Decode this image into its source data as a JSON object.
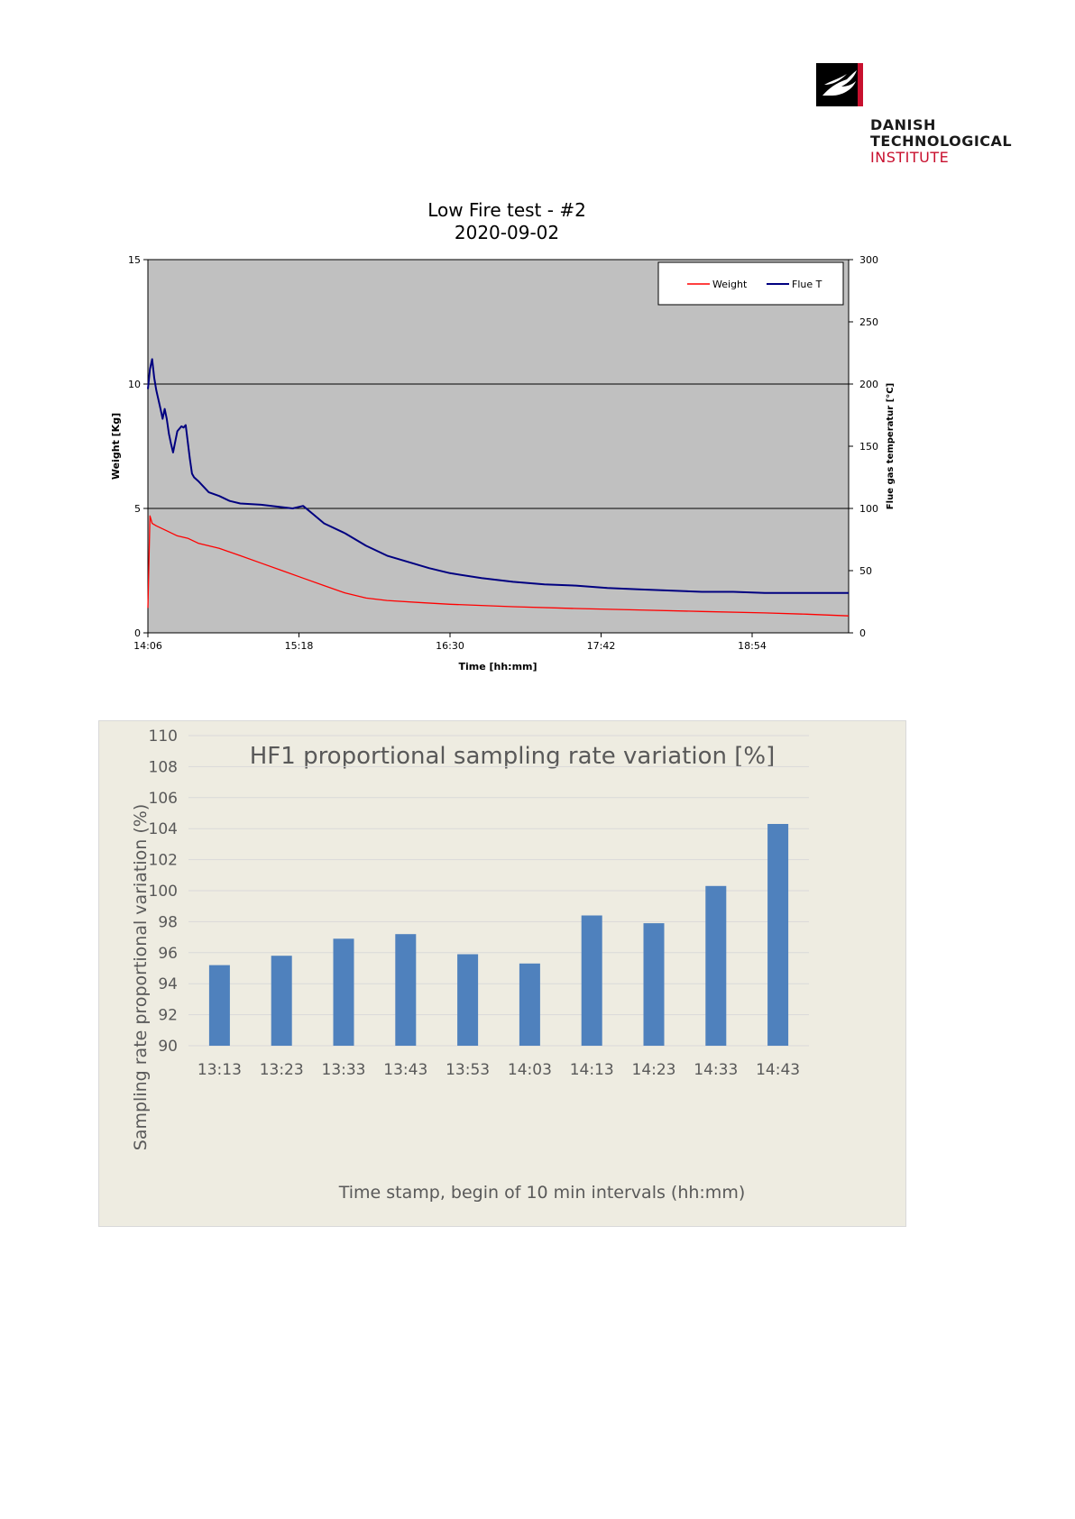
{
  "logo": {
    "lines": [
      "DANISH",
      "TECHNOLOGICAL",
      "INSTITUTE"
    ],
    "colors": {
      "mark_bg": "#000000",
      "mark_accent": "#c8102e",
      "text_dark": "#1a1a1a",
      "text_red": "#c8102e"
    }
  },
  "chart_data": [
    {
      "type": "line",
      "title": "Low Fire test - #2",
      "subtitle": "2020-09-02",
      "xlabel": "Time [hh:mm]",
      "ylabel": "Weight [Kg]",
      "y2label": "Flue gas temperatur [°C]",
      "x_ticks": [
        "14:06",
        "15:18",
        "16:30",
        "17:42",
        "18:54"
      ],
      "xlim": [
        "14:06",
        "19:40"
      ],
      "ylim": [
        0,
        15
      ],
      "y_ticks": [
        "0",
        "5",
        "10",
        "15"
      ],
      "y2lim": [
        0,
        300
      ],
      "y2_ticks": [
        "0",
        "50",
        "100",
        "150",
        "200",
        "250",
        "300"
      ],
      "grid": "horizontal at major left-axis ticks",
      "plot_background": "#c0c0c0",
      "legend_position": "top-right",
      "series": [
        {
          "name": "Weight",
          "axis": "left",
          "color": "#ff0000",
          "x": [
            "14:06",
            "14:07",
            "14:08",
            "14:10",
            "14:15",
            "14:20",
            "14:25",
            "14:30",
            "14:40",
            "14:50",
            "15:00",
            "15:10",
            "15:20",
            "15:30",
            "15:40",
            "15:50",
            "16:00",
            "16:15",
            "16:30",
            "17:00",
            "17:30",
            "18:00",
            "18:30",
            "19:00",
            "19:20",
            "19:40"
          ],
          "y": [
            1.0,
            4.7,
            4.4,
            4.3,
            4.1,
            3.9,
            3.8,
            3.6,
            3.4,
            3.1,
            2.8,
            2.5,
            2.2,
            1.9,
            1.6,
            1.4,
            1.3,
            1.22,
            1.15,
            1.05,
            0.98,
            0.92,
            0.86,
            0.8,
            0.75,
            0.68
          ]
        },
        {
          "name": "Flue T",
          "axis": "right",
          "color": "#000080",
          "x": [
            "14:06",
            "14:07",
            "14:08",
            "14:09",
            "14:10",
            "14:12",
            "14:13",
            "14:14",
            "14:15",
            "14:16",
            "14:17",
            "14:18",
            "14:20",
            "14:22",
            "14:23",
            "14:24",
            "14:26",
            "14:27",
            "14:28",
            "14:30",
            "14:35",
            "14:40",
            "14:45",
            "14:50",
            "15:00",
            "15:10",
            "15:15",
            "15:20",
            "15:25",
            "15:30",
            "15:40",
            "15:50",
            "16:00",
            "16:10",
            "16:20",
            "16:30",
            "16:45",
            "17:00",
            "17:15",
            "17:30",
            "17:45",
            "18:00",
            "18:15",
            "18:30",
            "18:45",
            "19:00",
            "19:20",
            "19:40"
          ],
          "y": [
            196,
            212,
            220,
            205,
            195,
            180,
            172,
            180,
            172,
            160,
            152,
            145,
            162,
            166,
            165,
            167,
            140,
            128,
            125,
            122,
            113,
            110,
            106,
            104,
            103,
            101,
            100,
            102,
            95,
            88,
            80,
            70,
            62,
            57,
            52,
            48,
            44,
            41,
            39,
            38,
            36,
            35,
            34,
            33,
            33,
            32,
            32,
            32
          ]
        }
      ]
    },
    {
      "type": "bar",
      "title": "HF1 proportional sampling rate variation [%]",
      "xlabel": "Time stamp, begin of 10 min intervals (hh:mm)",
      "ylabel": "Sampling rate proportional variation (%)",
      "categories": [
        "13:13",
        "13:23",
        "13:33",
        "13:43",
        "13:53",
        "14:03",
        "14:13",
        "14:23",
        "14:33",
        "14:43"
      ],
      "values": [
        95.2,
        95.8,
        96.9,
        97.2,
        95.9,
        95.3,
        98.4,
        97.9,
        100.3,
        104.3
      ],
      "ylim": [
        90,
        110
      ],
      "y_ticks": [
        "90",
        "92",
        "94",
        "96",
        "98",
        "100",
        "102",
        "104",
        "106",
        "108",
        "110"
      ],
      "grid": "horizontal",
      "colors": {
        "bar": "#4f81bd",
        "background": "#eeece1",
        "text": "#595959"
      }
    }
  ]
}
